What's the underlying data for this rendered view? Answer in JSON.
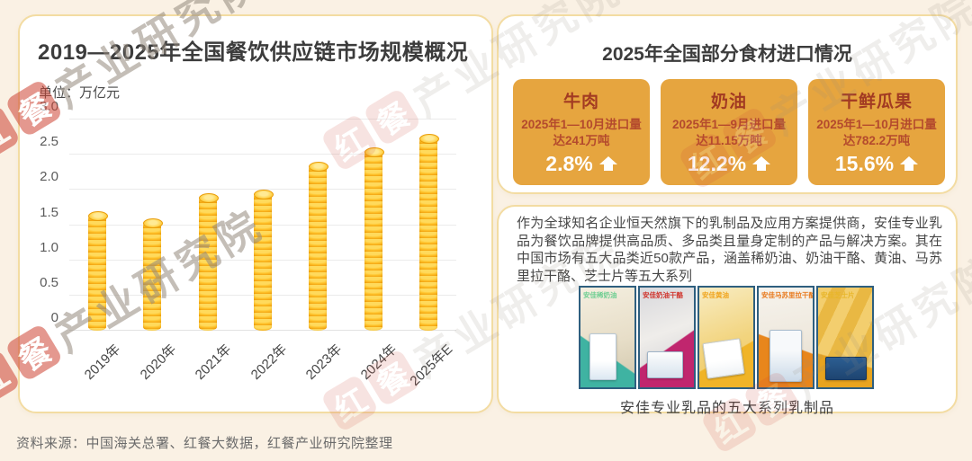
{
  "left_panel": {
    "title": "2019—2025年全国餐饮供应链市场规模概况",
    "unit_label": "单位：万亿元"
  },
  "chart_data": {
    "type": "bar",
    "title": "2019—2025年全国餐饮供应链市场规模概况",
    "unit": "万亿元",
    "categories": [
      "2019年",
      "2020年",
      "2021年",
      "2022年",
      "2023年",
      "2024年",
      "2025年E"
    ],
    "values": [
      1.65,
      1.55,
      1.9,
      1.95,
      2.35,
      2.55,
      2.75
    ],
    "xlabel": "",
    "ylabel": "万亿元",
    "ylim": [
      0,
      3.0
    ],
    "ytick_values": [
      0,
      0.5,
      1.0,
      1.5,
      2.0,
      2.5,
      3.0
    ],
    "ytick_labels": [
      "0",
      "0.5",
      "1.0",
      "1.5",
      "2.0",
      "2.5",
      "3.0"
    ],
    "grid": true,
    "legend": "none",
    "bar_color": "#F5B01D",
    "bar_style": "stacked-gold-coins"
  },
  "right_top_panel": {
    "title": "2025年全国部分食材进口情况",
    "card_bg_color": "#E6A53F",
    "cards": [
      {
        "name": "牛肉",
        "desc": "2025年1—10月进口量达241万吨",
        "pct": "2.8%",
        "trend_icon": "arrow-up"
      },
      {
        "name": "奶油",
        "desc": "2025年1—9月进口量达11.15万吨",
        "pct": "12.2%",
        "trend_icon": "arrow-up"
      },
      {
        "name": "干鲜瓜果",
        "desc": "2025年1—10月进口量达782.2万吨",
        "pct": "15.6%",
        "trend_icon": "arrow-up"
      }
    ]
  },
  "right_bottom_panel": {
    "paragraph": "作为全球知名企业恒天然旗下的乳制品及应用方案提供商，安佳专业乳品为餐饮品牌提供高品质、多品类且量身定制的产品与解决方案。其在中国市场有五大品类近50款产品，涵盖稀奶油、奶油干酪、黄油、马苏里拉干酪、芝士片等五大系列",
    "products": [
      {
        "label": "安佳稀奶油"
      },
      {
        "label": "安佳奶油干酪"
      },
      {
        "label": "安佳黄油"
      },
      {
        "label": "安佳马苏里拉干酪"
      },
      {
        "label": "安佳芝士片"
      }
    ],
    "caption": "安佳专业乳品的五大系列乳制品"
  },
  "footer": {
    "source": "资料来源：中国海关总署、红餐大数据，红餐产业研究院整理"
  },
  "watermark": {
    "logo_chars": [
      "红",
      "餐"
    ],
    "text": "产业研究院",
    "logo_color": "#CE4434"
  }
}
